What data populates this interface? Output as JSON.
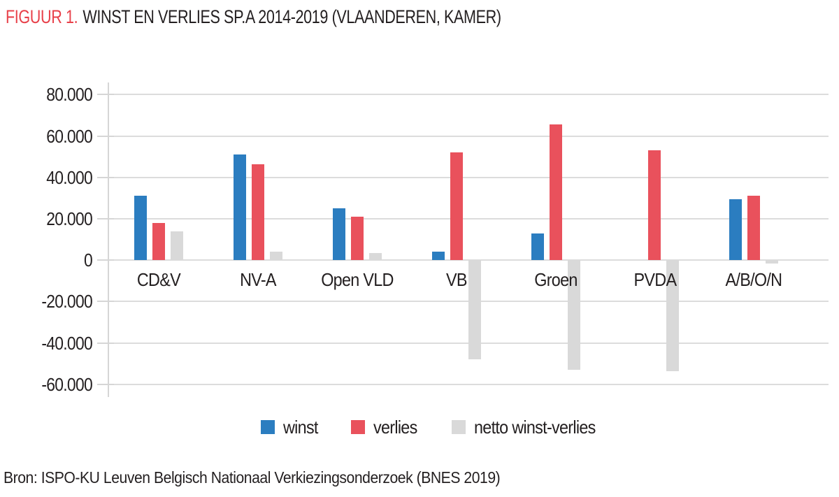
{
  "title": {
    "prefix": "FIGUUR 1.",
    "text": "WINST EN VERLIES SP.A 2014-2019 (VLAANDEREN, KAMER)"
  },
  "source": "Bron: ISPO-KU Leuven Belgisch Nationaal Verkiezingsonderzoek (BNES 2019)",
  "colors": {
    "title_accent": "#e8414a",
    "text": "#231f20",
    "gridline": "#dcdcdc",
    "axis": "#d6d6d6",
    "winst": "#2b7dc0",
    "verlies": "#e9515c",
    "netto": "#d9d9d9"
  },
  "chart_data": {
    "type": "bar",
    "categories": [
      "CD&V",
      "NV-A",
      "Open VLD",
      "VB",
      "Groen",
      "PVDA",
      "A/B/O/N"
    ],
    "series": [
      {
        "name": "winst",
        "color": "#2b7dc0",
        "values": [
          31000,
          51000,
          25000,
          4000,
          13000,
          0,
          29500
        ]
      },
      {
        "name": "verlies",
        "color": "#e9515c",
        "values": [
          18000,
          46500,
          21000,
          52000,
          65500,
          53000,
          31000
        ]
      },
      {
        "name": "netto winst-verlies",
        "color": "#d9d9d9",
        "values": [
          14000,
          4200,
          3600,
          -48000,
          -53000,
          -53500,
          -1500
        ]
      }
    ],
    "title": "WINST EN VERLIES SP.A 2014-2019 (VLAANDEREN, KAMER)",
    "xlabel": "",
    "ylabel": "",
    "ylim": [
      -60000,
      80000
    ],
    "yticks": [
      80000,
      60000,
      40000,
      20000,
      0,
      -20000,
      -40000,
      -60000
    ],
    "ytick_labels": [
      "80.000",
      "60.000",
      "40.000",
      "20.000",
      "0",
      "-20.000",
      "-40.000",
      "-60.000"
    ],
    "grid": true,
    "legend_position": "bottom"
  }
}
